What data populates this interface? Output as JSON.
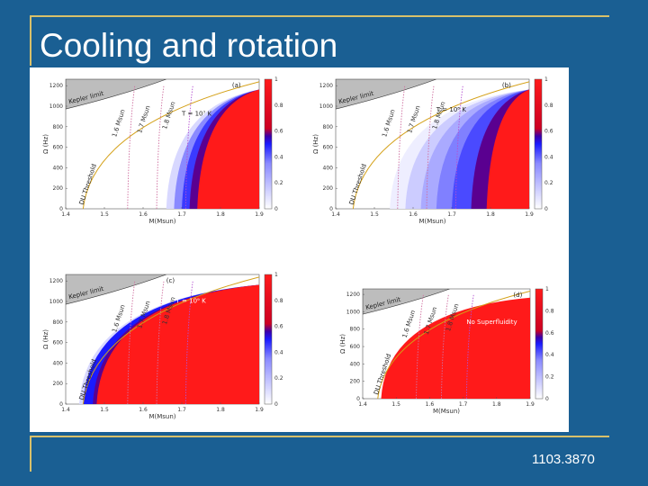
{
  "slide": {
    "title": "Cooling and rotation",
    "reference": "1103.3870",
    "colors": {
      "background": "#1a5f93",
      "rule": "#d8c06a",
      "red": "#ff1a1a",
      "blue": "#1a1aff"
    }
  },
  "figure": {
    "shared": {
      "y_ticks": [
        "0",
        "200",
        "400",
        "600",
        "800",
        "1000",
        "1200"
      ],
      "x_ticks": [
        "1.4",
        "1.5",
        "1.6",
        "1.7",
        "1.8",
        "1.9"
      ],
      "colorbar_ticks": [
        "0",
        "0.2",
        "0.4",
        "0.6",
        "0.8",
        "1"
      ],
      "ylabel": "Ω (Hz)",
      "xlabel": "M(Msun)",
      "kepler_label": "Kepler limit",
      "du_label": "DU Threshold",
      "mass_labels": [
        "1.6 Msun",
        "1.7 Msun",
        "1.8 Msun"
      ]
    },
    "panels": [
      {
        "letter": "(a)",
        "annotation": "T = 10⁷ K"
      },
      {
        "letter": "(b)",
        "annotation": "T = 10⁸ K"
      },
      {
        "letter": "(c)",
        "annotation": "T = 10⁹ K"
      },
      {
        "letter": "(d)",
        "annotation": "No Superfluidity"
      }
    ]
  }
}
